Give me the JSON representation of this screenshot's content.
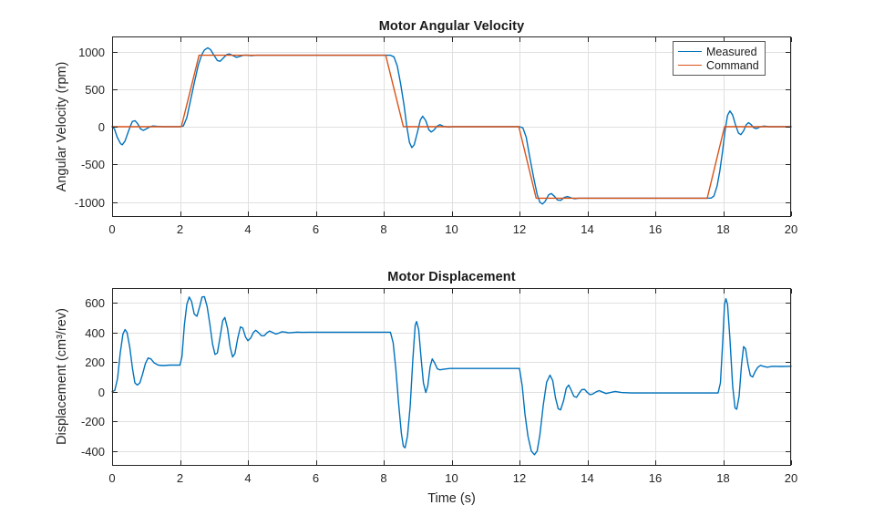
{
  "figure": {
    "background": "#ffffff"
  },
  "chart_data": [
    {
      "type": "line",
      "title": "Motor Angular Velocity",
      "xlabel": "",
      "ylabel": "Angular Velocity (rpm)",
      "xlim": [
        0,
        20
      ],
      "ylim": [
        -1200,
        1200
      ],
      "xticks": [
        0,
        2,
        4,
        6,
        8,
        10,
        12,
        14,
        16,
        18,
        20
      ],
      "yticks": [
        -1000,
        -500,
        0,
        500,
        1000
      ],
      "grid": true,
      "legend": {
        "position": "northeast",
        "entries": [
          "Measured",
          "Command"
        ]
      },
      "series": [
        {
          "name": "Measured",
          "color": "#0072BD",
          "points": [
            [
              0,
              0
            ],
            [
              0.07,
              -30
            ],
            [
              0.15,
              -140
            ],
            [
              0.25,
              -225
            ],
            [
              0.3,
              -240
            ],
            [
              0.38,
              -190
            ],
            [
              0.46,
              -90
            ],
            [
              0.54,
              10
            ],
            [
              0.6,
              70
            ],
            [
              0.68,
              80
            ],
            [
              0.76,
              35
            ],
            [
              0.84,
              -30
            ],
            [
              0.92,
              -48
            ],
            [
              1.0,
              -30
            ],
            [
              1.1,
              -5
            ],
            [
              1.2,
              10
            ],
            [
              1.32,
              5
            ],
            [
              1.5,
              0
            ],
            [
              2.0,
              0
            ],
            [
              2.1,
              10
            ],
            [
              2.2,
              120
            ],
            [
              2.3,
              330
            ],
            [
              2.42,
              580
            ],
            [
              2.54,
              820
            ],
            [
              2.64,
              955
            ],
            [
              2.72,
              1020
            ],
            [
              2.82,
              1050
            ],
            [
              2.9,
              1025
            ],
            [
              3.0,
              950
            ],
            [
              3.1,
              880
            ],
            [
              3.18,
              870
            ],
            [
              3.28,
              915
            ],
            [
              3.38,
              960
            ],
            [
              3.46,
              967
            ],
            [
              3.56,
              945
            ],
            [
              3.66,
              922
            ],
            [
              3.76,
              933
            ],
            [
              3.86,
              950
            ],
            [
              3.96,
              952
            ],
            [
              4.1,
              944
            ],
            [
              4.25,
              950
            ],
            [
              4.5,
              950
            ],
            [
              8.2,
              950
            ],
            [
              8.3,
              930
            ],
            [
              8.4,
              810
            ],
            [
              8.5,
              570
            ],
            [
              8.6,
              280
            ],
            [
              8.68,
              10
            ],
            [
              8.76,
              -210
            ],
            [
              8.83,
              -278
            ],
            [
              8.9,
              -240
            ],
            [
              9.0,
              -60
            ],
            [
              9.08,
              90
            ],
            [
              9.15,
              140
            ],
            [
              9.24,
              80
            ],
            [
              9.33,
              -40
            ],
            [
              9.4,
              -70
            ],
            [
              9.48,
              -45
            ],
            [
              9.58,
              10
            ],
            [
              9.66,
              28
            ],
            [
              9.76,
              5
            ],
            [
              9.9,
              -5
            ],
            [
              10.05,
              0
            ],
            [
              12.0,
              0
            ],
            [
              12.1,
              -15
            ],
            [
              12.2,
              -140
            ],
            [
              12.3,
              -400
            ],
            [
              12.42,
              -680
            ],
            [
              12.52,
              -900
            ],
            [
              12.6,
              -1005
            ],
            [
              12.68,
              -1028
            ],
            [
              12.76,
              -990
            ],
            [
              12.86,
              -905
            ],
            [
              12.94,
              -888
            ],
            [
              13.04,
              -930
            ],
            [
              13.12,
              -975
            ],
            [
              13.22,
              -978
            ],
            [
              13.32,
              -940
            ],
            [
              13.42,
              -928
            ],
            [
              13.52,
              -945
            ],
            [
              13.62,
              -958
            ],
            [
              13.75,
              -950
            ],
            [
              14.0,
              -950
            ],
            [
              17.55,
              -950
            ],
            [
              17.65,
              -948
            ],
            [
              17.73,
              -920
            ],
            [
              17.82,
              -790
            ],
            [
              17.9,
              -590
            ],
            [
              17.98,
              -330
            ],
            [
              18.06,
              -40
            ],
            [
              18.13,
              150
            ],
            [
              18.2,
              210
            ],
            [
              18.28,
              155
            ],
            [
              18.37,
              15
            ],
            [
              18.45,
              -85
            ],
            [
              18.52,
              -105
            ],
            [
              18.6,
              -55
            ],
            [
              18.68,
              25
            ],
            [
              18.75,
              55
            ],
            [
              18.83,
              25
            ],
            [
              18.9,
              -15
            ],
            [
              18.98,
              -25
            ],
            [
              19.08,
              -5
            ],
            [
              19.2,
              8
            ],
            [
              19.35,
              0
            ],
            [
              20,
              0
            ]
          ]
        },
        {
          "name": "Command",
          "color": "#D95319",
          "points": [
            [
              0,
              0
            ],
            [
              2.04,
              0
            ],
            [
              2.56,
              950
            ],
            [
              8.06,
              950
            ],
            [
              8.58,
              0
            ],
            [
              11.98,
              0
            ],
            [
              12.49,
              -950
            ],
            [
              17.53,
              -950
            ],
            [
              18.04,
              0
            ],
            [
              20,
              0
            ]
          ]
        }
      ]
    },
    {
      "type": "line",
      "title": "Motor Displacement",
      "xlabel": "Time (s)",
      "ylabel": "Displacement  (cm³/rev)",
      "xlim": [
        0,
        20
      ],
      "ylim": [
        -500,
        700
      ],
      "xticks": [
        0,
        2,
        4,
        6,
        8,
        10,
        12,
        14,
        16,
        18,
        20
      ],
      "yticks": [
        -400,
        -200,
        0,
        200,
        400,
        600
      ],
      "grid": true,
      "series": [
        {
          "name": "Displacement",
          "color": "#0072BD",
          "points": [
            [
              0,
              0
            ],
            [
              0.08,
              10
            ],
            [
              0.16,
              90
            ],
            [
              0.24,
              260
            ],
            [
              0.32,
              390
            ],
            [
              0.38,
              420
            ],
            [
              0.44,
              400
            ],
            [
              0.52,
              300
            ],
            [
              0.6,
              160
            ],
            [
              0.67,
              60
            ],
            [
              0.74,
              45
            ],
            [
              0.82,
              60
            ],
            [
              0.9,
              120
            ],
            [
              0.98,
              190
            ],
            [
              1.06,
              228
            ],
            [
              1.14,
              222
            ],
            [
              1.24,
              195
            ],
            [
              1.36,
              180
            ],
            [
              1.5,
              177
            ],
            [
              1.7,
              180
            ],
            [
              2.0,
              180
            ],
            [
              2.06,
              240
            ],
            [
              2.13,
              450
            ],
            [
              2.2,
              590
            ],
            [
              2.27,
              640
            ],
            [
              2.34,
              610
            ],
            [
              2.42,
              525
            ],
            [
              2.5,
              510
            ],
            [
              2.58,
              575
            ],
            [
              2.65,
              640
            ],
            [
              2.72,
              642
            ],
            [
              2.8,
              575
            ],
            [
              2.88,
              455
            ],
            [
              2.96,
              320
            ],
            [
              3.03,
              252
            ],
            [
              3.1,
              262
            ],
            [
              3.18,
              370
            ],
            [
              3.26,
              480
            ],
            [
              3.32,
              502
            ],
            [
              3.4,
              430
            ],
            [
              3.48,
              300
            ],
            [
              3.55,
              235
            ],
            [
              3.62,
              258
            ],
            [
              3.7,
              360
            ],
            [
              3.78,
              438
            ],
            [
              3.85,
              430
            ],
            [
              3.93,
              370
            ],
            [
              4.0,
              345
            ],
            [
              4.08,
              362
            ],
            [
              4.16,
              400
            ],
            [
              4.23,
              415
            ],
            [
              4.32,
              398
            ],
            [
              4.4,
              378
            ],
            [
              4.48,
              378
            ],
            [
              4.56,
              398
            ],
            [
              4.64,
              410
            ],
            [
              4.73,
              400
            ],
            [
              4.82,
              390
            ],
            [
              4.9,
              395
            ],
            [
              5.0,
              405
            ],
            [
              5.1,
              403
            ],
            [
              5.2,
              398
            ],
            [
              5.3,
              400
            ],
            [
              5.45,
              403
            ],
            [
              5.6,
              401
            ],
            [
              5.8,
              402
            ],
            [
              8.2,
              402
            ],
            [
              8.28,
              330
            ],
            [
              8.36,
              150
            ],
            [
              8.44,
              -80
            ],
            [
              8.52,
              -280
            ],
            [
              8.58,
              -368
            ],
            [
              8.63,
              -378
            ],
            [
              8.7,
              -300
            ],
            [
              8.78,
              -95
            ],
            [
              8.86,
              220
            ],
            [
              8.93,
              450
            ],
            [
              8.97,
              474
            ],
            [
              9.03,
              420
            ],
            [
              9.1,
              230
            ],
            [
              9.17,
              60
            ],
            [
              9.24,
              -5
            ],
            [
              9.3,
              40
            ],
            [
              9.37,
              170
            ],
            [
              9.43,
              222
            ],
            [
              9.5,
              195
            ],
            [
              9.58,
              155
            ],
            [
              9.66,
              148
            ],
            [
              9.78,
              153
            ],
            [
              9.95,
              157
            ],
            [
              12.0,
              157
            ],
            [
              12.08,
              40
            ],
            [
              12.16,
              -150
            ],
            [
              12.25,
              -300
            ],
            [
              12.35,
              -400
            ],
            [
              12.44,
              -425
            ],
            [
              12.52,
              -400
            ],
            [
              12.6,
              -290
            ],
            [
              12.7,
              -90
            ],
            [
              12.8,
              65
            ],
            [
              12.9,
              112
            ],
            [
              12.98,
              75
            ],
            [
              13.06,
              -40
            ],
            [
              13.14,
              -115
            ],
            [
              13.21,
              -122
            ],
            [
              13.3,
              -60
            ],
            [
              13.38,
              25
            ],
            [
              13.45,
              45
            ],
            [
              13.53,
              8
            ],
            [
              13.6,
              -30
            ],
            [
              13.68,
              -38
            ],
            [
              13.76,
              -8
            ],
            [
              13.84,
              15
            ],
            [
              13.92,
              16
            ],
            [
              14.0,
              -5
            ],
            [
              14.08,
              -20
            ],
            [
              14.16,
              -15
            ],
            [
              14.26,
              0
            ],
            [
              14.35,
              8
            ],
            [
              14.45,
              -3
            ],
            [
              14.55,
              -12
            ],
            [
              14.68,
              -5
            ],
            [
              14.82,
              2
            ],
            [
              15.0,
              -5
            ],
            [
              15.3,
              -8
            ],
            [
              16.0,
              -8
            ],
            [
              17.0,
              -8
            ],
            [
              17.85,
              -8
            ],
            [
              17.92,
              60
            ],
            [
              17.99,
              350
            ],
            [
              18.04,
              590
            ],
            [
              18.08,
              628
            ],
            [
              18.13,
              590
            ],
            [
              18.2,
              360
            ],
            [
              18.28,
              40
            ],
            [
              18.35,
              -110
            ],
            [
              18.4,
              -118
            ],
            [
              18.47,
              -30
            ],
            [
              18.54,
              180
            ],
            [
              18.6,
              305
            ],
            [
              18.66,
              290
            ],
            [
              18.73,
              185
            ],
            [
              18.8,
              110
            ],
            [
              18.87,
              100
            ],
            [
              18.94,
              135
            ],
            [
              19.02,
              165
            ],
            [
              19.1,
              178
            ],
            [
              19.18,
              172
            ],
            [
              19.3,
              166
            ],
            [
              19.45,
              172
            ],
            [
              19.7,
              171
            ],
            [
              20,
              172
            ]
          ]
        }
      ]
    }
  ],
  "style": {
    "axis_color": "#262626",
    "grid_color": "#e0e0e0",
    "background": "#ffffff"
  }
}
